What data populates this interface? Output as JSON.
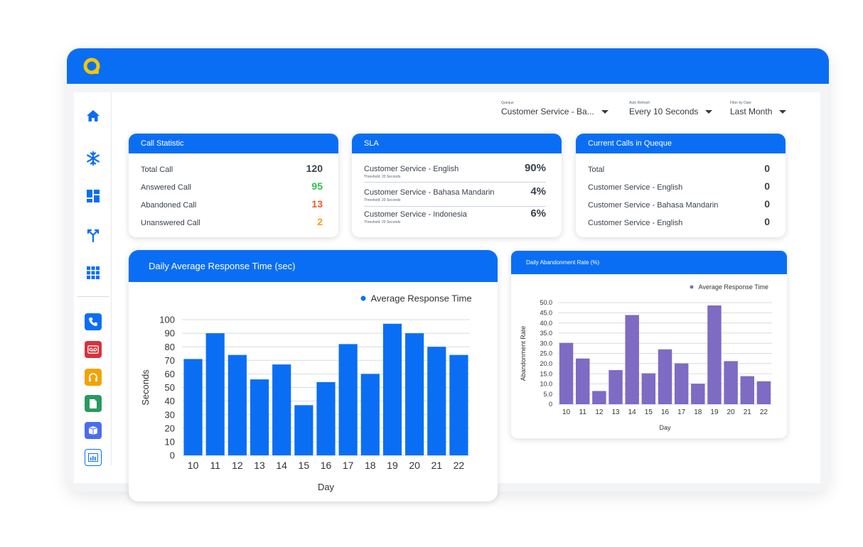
{
  "colors": {
    "primary": "#0a6ef5",
    "logo": "#f6c700",
    "green": "#2bc24a",
    "red": "#f25a29",
    "orange": "#f5a200",
    "purple": "#7d6bc4"
  },
  "filters": {
    "queue": {
      "label": "Queque",
      "value": "Customer Service - Ba..."
    },
    "auto_refresh": {
      "label": "Auto Refresh",
      "value": "Every 10 Seconds"
    },
    "date": {
      "label": "Filter by Date",
      "value": "Last Month"
    }
  },
  "sidebar": {
    "icons": [
      "home-icon",
      "snowflake-icon",
      "dashboard-icon",
      "merge-icon",
      "apps-grid-icon"
    ],
    "channels": [
      "phone-icon",
      "voicemail-icon",
      "headset-icon",
      "document-icon",
      "package-icon",
      "report-icon"
    ]
  },
  "call_statistic": {
    "title": "Call Statistic",
    "rows": [
      {
        "label": "Total Call",
        "value": "120"
      },
      {
        "label": "Answered Call",
        "value": "95"
      },
      {
        "label": "Abandoned Call",
        "value": "13"
      },
      {
        "label": "Unanswered Call",
        "value": "2"
      }
    ]
  },
  "sla": {
    "title": "SLA",
    "rows": [
      {
        "label": "Customer Service - English",
        "threshold": "Threshold: 20 Seconds",
        "value": "90%"
      },
      {
        "label": "Customer Service - Bahasa Mandarin",
        "threshold": "Threshold: 20 Seconds",
        "value": "4%"
      },
      {
        "label": "Customer Service - Indonesia",
        "threshold": "Threshold: 20 Seconds",
        "value": "6%"
      }
    ]
  },
  "current_calls": {
    "title": "Current Calls in Queque",
    "rows": [
      {
        "label": "Total",
        "value": "0"
      },
      {
        "label": "Customer Service - English",
        "value": "0"
      },
      {
        "label": "Customer Service - Bahasa Mandarin",
        "value": "0"
      },
      {
        "label": "Customer Service - English",
        "value": "0"
      }
    ]
  },
  "chart_data": [
    {
      "type": "bar",
      "title": "Daily Average Response Time (sec)",
      "xlabel": "Day",
      "ylabel": "Seconds",
      "categories": [
        "10",
        "11",
        "12",
        "13",
        "14",
        "15",
        "16",
        "17",
        "18",
        "19",
        "20",
        "21",
        "22"
      ],
      "series": [
        {
          "name": "Average Response Time",
          "values": [
            71,
            90,
            74,
            56,
            67,
            37,
            54,
            82,
            60,
            97,
            90,
            80,
            74
          ]
        }
      ],
      "ylim": [
        0,
        100
      ],
      "yticks": [
        "0",
        "10",
        "20",
        "30",
        "40",
        "50",
        "60",
        "70",
        "80",
        "90",
        "100"
      ],
      "grid": true,
      "legend": "top-right",
      "color": "#0a6ef5"
    },
    {
      "type": "bar",
      "title": "Daily Abandonment Rate (%)",
      "xlabel": "Day",
      "ylabel": "Abandonment Rate",
      "categories": [
        "10",
        "11",
        "12",
        "13",
        "14",
        "15",
        "16",
        "17",
        "18",
        "19",
        "20",
        "21",
        "22"
      ],
      "series": [
        {
          "name": "Average Response Time",
          "values": [
            30.2,
            22.5,
            6.5,
            16.8,
            43.9,
            15.2,
            27,
            20.1,
            10.1,
            48.6,
            21.2,
            13.8,
            11.3
          ]
        }
      ],
      "ylim": [
        0,
        50
      ],
      "yticks": [
        "0",
        "5.0",
        "10.0",
        "15.0",
        "20.0",
        "25.0",
        "30.0",
        "35.0",
        "40.0",
        "45.0",
        "50.0"
      ],
      "grid": true,
      "legend": "top-right",
      "color": "#7d6bc4"
    }
  ]
}
